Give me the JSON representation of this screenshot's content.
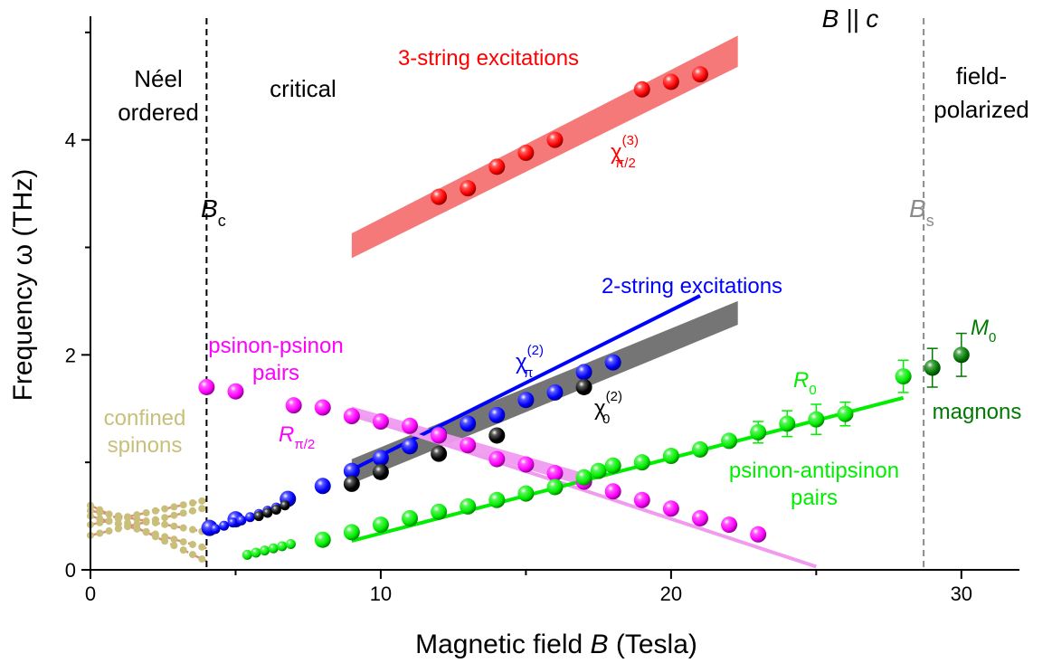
{
  "chart_data": {
    "type": "scatter",
    "title": "",
    "field_label": "B || c",
    "xlabel": {
      "prefix": "Magnetic field ",
      "var": "B",
      "suffix": " (Tesla)"
    },
    "ylabel": "Frequency ω (THz)",
    "xlim": [
      0,
      32
    ],
    "ylim": [
      0,
      5.15
    ],
    "xticks": [
      0,
      10,
      20,
      30
    ],
    "yticks": [
      0,
      2,
      4
    ],
    "grid": false,
    "regions": {
      "neel": [
        "Néel",
        "ordered"
      ],
      "critical": "critical",
      "field_polarized": [
        "field-",
        "polarized"
      ]
    },
    "critical_fields": [
      {
        "name": "Bc",
        "main": "B",
        "sub": "c",
        "x": 4.0,
        "color": "#000000"
      },
      {
        "name": "Bs",
        "main": "B",
        "sub": "s",
        "x": 28.7,
        "color": "#8c8c8c"
      }
    ],
    "labels": {
      "three_string": "3-string excitations",
      "two_string": "2-string excitations",
      "psinon_psinon": [
        "psinon-psinon",
        "pairs"
      ],
      "psinon_antipsinon": [
        "psinon-antipsinon",
        "pairs"
      ],
      "confined_spinons": [
        "confined",
        "spinons"
      ],
      "magnons": "magnons",
      "chi3": {
        "main": "χ",
        "sup": "(3)",
        "sub": "π/2"
      },
      "chi2_pi": {
        "main": "χ",
        "sup": "(2)",
        "sub": "π"
      },
      "chi2_0": {
        "main": "χ",
        "sup": "(2)",
        "sub": "0"
      },
      "R_pi2": {
        "main": "R",
        "sub": "π/2"
      },
      "R0": {
        "main": "R",
        "sub": "0"
      },
      "M0": {
        "main": "M",
        "sub": "0"
      }
    },
    "colors": {
      "red": "#ff0000",
      "blue": "#0000ff",
      "black": "#000000",
      "magenta": "#ff00ff",
      "green": "#00ee00",
      "darkgreen": "#007a00",
      "olive": "#c8c07a",
      "band_red": "#f67272",
      "band_gray": "#6e6e6e",
      "band_pink": "#f09bf0"
    },
    "series": [
      {
        "name": "3-string excitations",
        "key": "red",
        "size": "large",
        "x": [
          12,
          13,
          14,
          15,
          16,
          19,
          20,
          21
        ],
        "y": [
          3.47,
          3.55,
          3.75,
          3.88,
          4.0,
          4.47,
          4.54,
          4.61
        ]
      },
      {
        "name": "2-string excitations",
        "key": "blue",
        "size": "large",
        "x": [
          4.1,
          5,
          6.8,
          8,
          9,
          10,
          11,
          12,
          13,
          14,
          15,
          16,
          17,
          18
        ],
        "y": [
          0.39,
          0.47,
          0.66,
          0.78,
          0.92,
          1.04,
          1.15,
          1.26,
          1.36,
          1.44,
          1.58,
          1.65,
          1.84,
          1.93
        ]
      },
      {
        "name": "2-string excitations (low field)",
        "key": "blue",
        "size": "small",
        "x": [
          4.3,
          4.6,
          4.9,
          5.2,
          5.5,
          5.8,
          6.1,
          6.4
        ],
        "y": [
          0.38,
          0.41,
          0.44,
          0.46,
          0.49,
          0.52,
          0.55,
          0.58
        ]
      },
      {
        "name": "χ₀(2)",
        "key": "black",
        "size": "large",
        "x": [
          9,
          10,
          12,
          14,
          17
        ],
        "y": [
          0.8,
          0.91,
          1.08,
          1.25,
          1.7
        ]
      },
      {
        "name": "χ₀(2) (low field)",
        "key": "black",
        "size": "small",
        "x": [
          5.8,
          6.1,
          6.4,
          6.7
        ],
        "y": [
          0.5,
          0.53,
          0.56,
          0.6
        ]
      },
      {
        "name": "psinon-psinon pairs",
        "key": "magenta",
        "size": "large",
        "x": [
          4.0,
          5,
          7,
          8,
          9,
          10,
          11,
          12,
          13,
          14,
          15,
          16,
          17,
          18,
          19,
          20,
          21,
          22,
          23
        ],
        "y": [
          1.7,
          1.66,
          1.53,
          1.51,
          1.43,
          1.38,
          1.34,
          1.25,
          1.16,
          1.03,
          0.98,
          0.9,
          0.82,
          0.73,
          0.65,
          0.57,
          0.48,
          0.42,
          0.33
        ]
      },
      {
        "name": "psinon-antipsinon pairs",
        "key": "green",
        "size": "large",
        "x": [
          8,
          9,
          10,
          11,
          12,
          13,
          14,
          15,
          16,
          17,
          17.5,
          18,
          19,
          20,
          21,
          22,
          23,
          24,
          25,
          26,
          28
        ],
        "y": [
          0.28,
          0.35,
          0.42,
          0.48,
          0.54,
          0.59,
          0.65,
          0.71,
          0.77,
          0.86,
          0.92,
          0.97,
          1.0,
          1.06,
          1.12,
          1.2,
          1.28,
          1.36,
          1.4,
          1.45,
          1.8
        ]
      },
      {
        "name": "psinon-antipsinon pairs (low field)",
        "key": "green",
        "size": "small",
        "x": [
          5.4,
          5.7,
          6.0,
          6.3,
          6.6,
          6.9
        ],
        "y": [
          0.14,
          0.16,
          0.18,
          0.2,
          0.22,
          0.24
        ]
      },
      {
        "name": "magnons",
        "key": "darkgreen",
        "size": "large",
        "x": [
          29,
          30
        ],
        "y": [
          1.88,
          2.0
        ]
      }
    ],
    "error_bars": [
      {
        "key": "green",
        "x": 23,
        "y": 1.28,
        "err": 0.1
      },
      {
        "key": "green",
        "x": 24,
        "y": 1.36,
        "err": 0.12
      },
      {
        "key": "green",
        "x": 25,
        "y": 1.4,
        "err": 0.14
      },
      {
        "key": "green",
        "x": 26,
        "y": 1.45,
        "err": 0.11
      },
      {
        "key": "green",
        "x": 28,
        "y": 1.8,
        "err": 0.15
      },
      {
        "key": "darkgreen",
        "x": 29,
        "y": 1.88,
        "err": 0.18
      },
      {
        "key": "darkgreen",
        "x": 30,
        "y": 2.0,
        "err": 0.2
      }
    ],
    "confined_spinon_lines": [
      {
        "x": [
          0,
          4
        ],
        "y": [
          0.6,
          0.08
        ]
      },
      {
        "x": [
          0,
          4
        ],
        "y": [
          0.5,
          0.2
        ]
      },
      {
        "x": [
          0,
          4
        ],
        "y": [
          0.32,
          0.58
        ]
      },
      {
        "x": [
          0,
          4
        ],
        "y": [
          0.42,
          0.65
        ]
      },
      {
        "x": [
          0,
          4
        ],
        "y": [
          0.55,
          0.35
        ]
      }
    ],
    "bands": [
      {
        "name": "3-string band",
        "key": "band_red",
        "x": [
          9,
          22.3
        ],
        "y_low": [
          2.9,
          4.68
        ],
        "y_high": [
          3.13,
          4.97
        ]
      },
      {
        "name": "2-string band",
        "key": "band_gray",
        "x": [
          9,
          22.3
        ],
        "y_low": [
          0.8,
          2.28
        ],
        "y_high": [
          1.03,
          2.5
        ]
      },
      {
        "name": "psinon-psinon band",
        "key": "band_pink",
        "x": [
          9,
          17
        ],
        "y_low": [
          1.42,
          0.78
        ],
        "y_high": [
          1.52,
          0.9
        ]
      }
    ],
    "fits": [
      {
        "name": "2-string fit",
        "key": "blue",
        "x": [
          9,
          21
        ],
        "y": [
          0.93,
          2.55
        ]
      },
      {
        "name": "psinon-psinon fit",
        "key": "band_pink",
        "x": [
          9,
          25
        ],
        "y": [
          1.45,
          0.03
        ]
      },
      {
        "name": "psinon-antipsinon fit",
        "key": "green",
        "x": [
          9,
          28
        ],
        "y": [
          0.27,
          1.6
        ]
      }
    ]
  }
}
